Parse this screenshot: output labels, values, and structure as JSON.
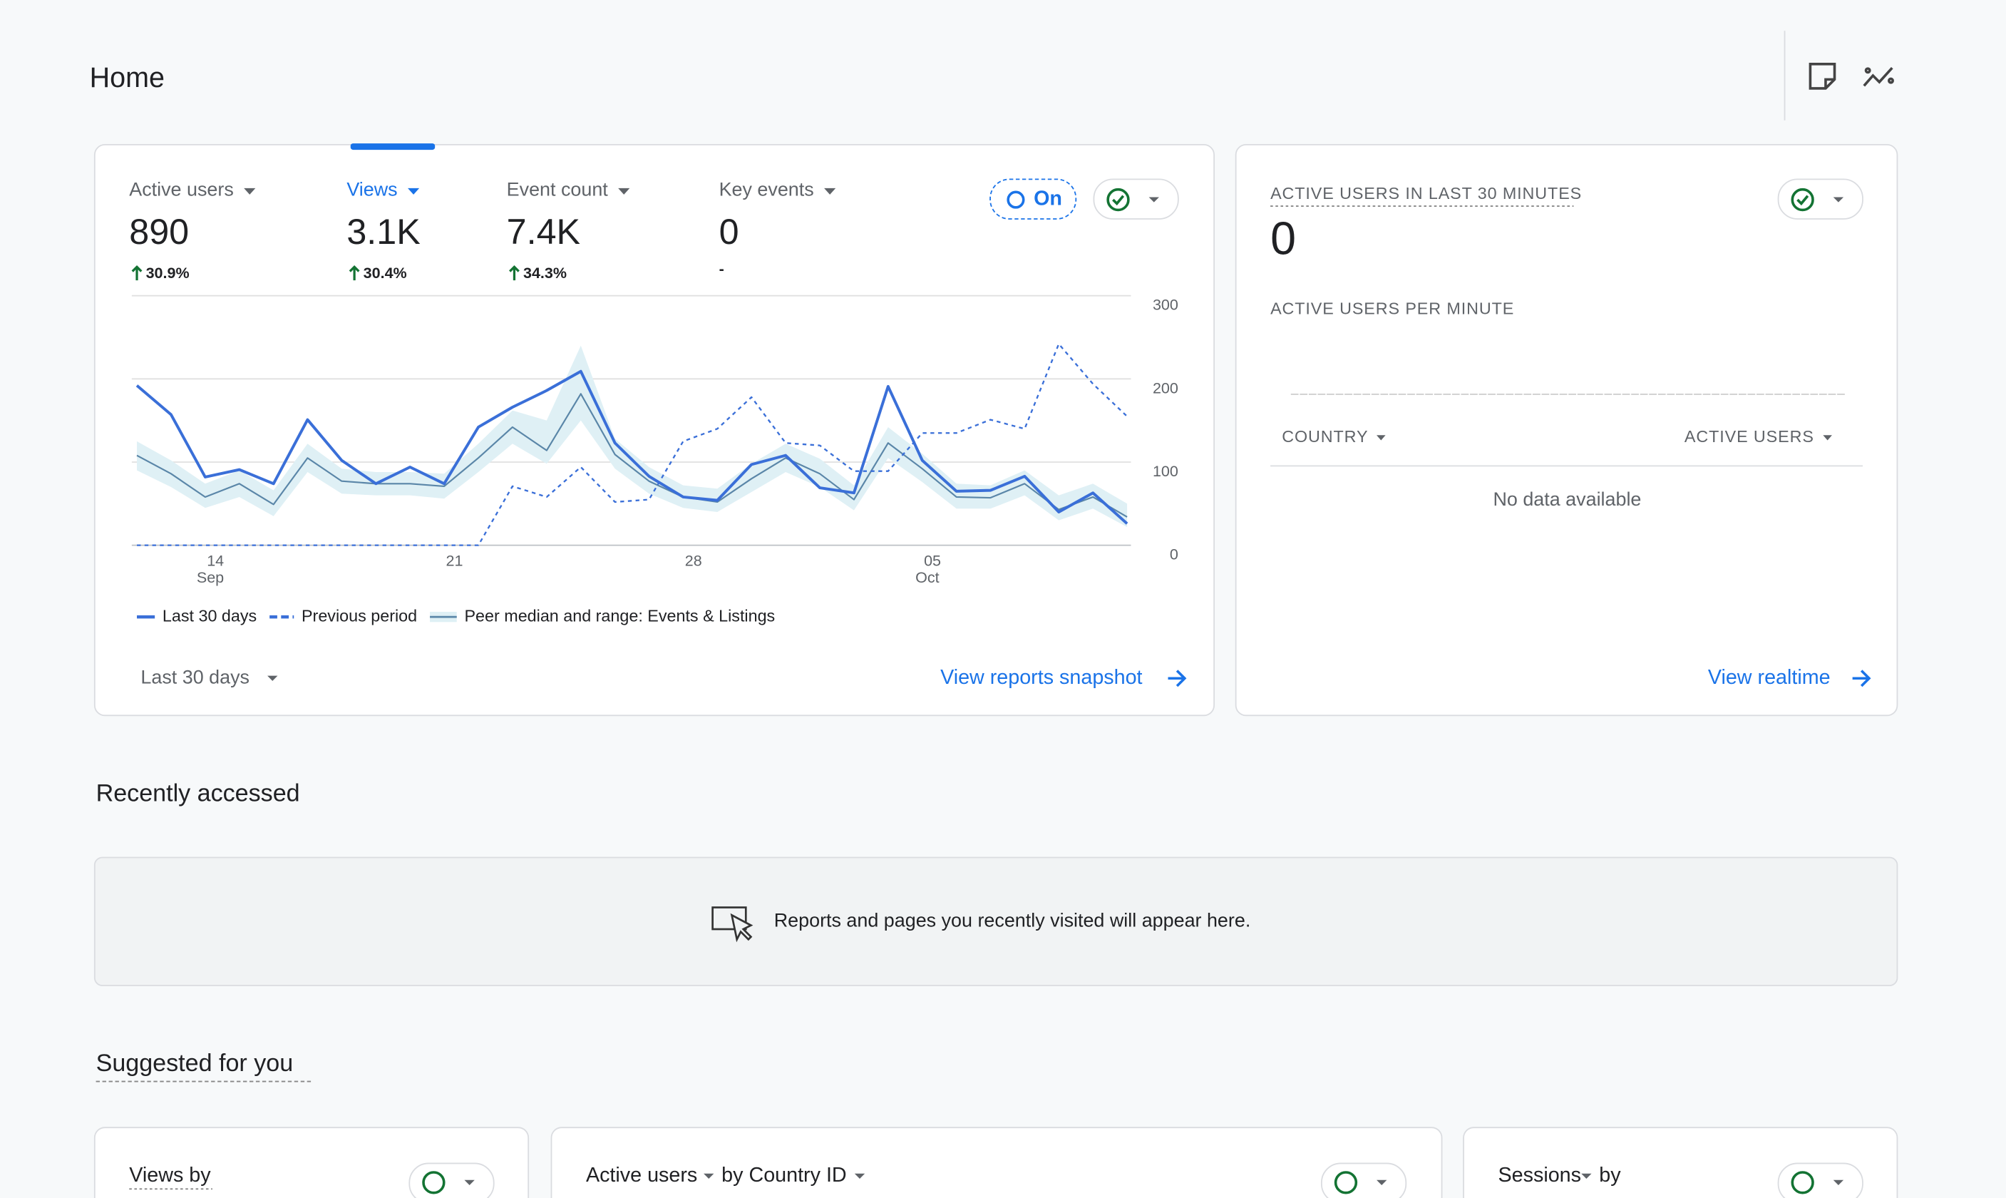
{
  "header": {
    "title": "Home"
  },
  "metrics": [
    {
      "label": "Active users",
      "value": "890",
      "change": "30.9%"
    },
    {
      "label": "Views",
      "value": "3.1K",
      "change": "30.4%"
    },
    {
      "label": "Event count",
      "value": "7.4K",
      "change": "34.3%"
    },
    {
      "label": "Key events",
      "value": "0",
      "change": "-"
    }
  ],
  "badge": "On",
  "chart_data": {
    "type": "line",
    "categories": [
      null,
      null,
      "14",
      null,
      null,
      null,
      null,
      null,
      null,
      "21",
      null,
      null,
      null,
      null,
      null,
      null,
      "28",
      null,
      null,
      null,
      null,
      null,
      null,
      "05",
      null,
      null,
      null,
      null,
      null,
      null
    ],
    "x_sublabels": [
      null,
      null,
      "Sep",
      null,
      null,
      null,
      null,
      null,
      null,
      null,
      null,
      null,
      null,
      null,
      null,
      null,
      null,
      null,
      null,
      null,
      null,
      null,
      null,
      "Oct",
      null,
      null,
      null,
      null,
      null,
      null
    ],
    "ylim": [
      0,
      300
    ],
    "yticks": [
      0,
      100,
      200,
      300
    ],
    "grid": true,
    "series": [
      {
        "name": "Last 30 days",
        "color": "#3a6fd8",
        "style": "solid",
        "values": [
          192,
          157,
          82,
          91,
          74,
          151,
          102,
          74,
          94,
          74,
          142,
          166,
          186,
          209,
          123,
          83,
          58,
          54,
          97,
          108,
          69,
          63,
          191,
          102,
          65,
          66,
          83,
          40,
          63,
          26
        ]
      },
      {
        "name": "Previous period",
        "color": "#3a6fd8",
        "style": "dashed",
        "values": [
          0,
          0,
          0,
          0,
          0,
          0,
          0,
          0,
          0,
          0,
          0,
          71,
          58,
          94,
          52,
          55,
          125,
          140,
          178,
          123,
          120,
          89,
          89,
          135,
          135,
          151,
          140,
          242,
          194,
          155
        ]
      },
      {
        "name": "Peer median and range: Events & Listings",
        "color": "#5a86a8",
        "style": "thin",
        "band_color": "#dff0f5",
        "values": [
          108,
          86,
          58,
          74,
          49,
          105,
          77,
          74,
          74,
          71,
          105,
          142,
          114,
          182,
          109,
          77,
          58,
          52,
          80,
          105,
          86,
          55,
          123,
          92,
          58,
          57,
          74,
          43,
          58,
          34
        ],
        "range_high": [
          125,
          102,
          74,
          90,
          66,
          122,
          92,
          88,
          88,
          86,
          122,
          162,
          150,
          240,
          128,
          94,
          72,
          68,
          98,
          122,
          104,
          72,
          142,
          110,
          74,
          72,
          90,
          60,
          74,
          50
        ],
        "range_low": [
          90,
          70,
          45,
          58,
          35,
          88,
          62,
          60,
          60,
          56,
          88,
          122,
          98,
          150,
          92,
          62,
          45,
          40,
          64,
          88,
          70,
          42,
          105,
          76,
          44,
          44,
          60,
          30,
          44,
          22
        ]
      }
    ]
  },
  "date_range": "Last 30 days",
  "snapshot_link": "View reports snapshot",
  "realtime": {
    "title": "ACTIVE USERS IN LAST 30 MINUTES",
    "value": "0",
    "subtitle": "ACTIVE USERS PER MINUTE",
    "columns": [
      "COUNTRY",
      "ACTIVE USERS"
    ],
    "empty": "No data available",
    "link": "View realtime"
  },
  "recent": {
    "title": "Recently accessed",
    "message": "Reports and pages you recently visited will appear here."
  },
  "suggested": {
    "title": "Suggested for you",
    "cards": [
      [
        "Views by"
      ],
      [
        "Active users",
        "by Country ID"
      ],
      [
        "Sessions",
        "by"
      ]
    ]
  }
}
